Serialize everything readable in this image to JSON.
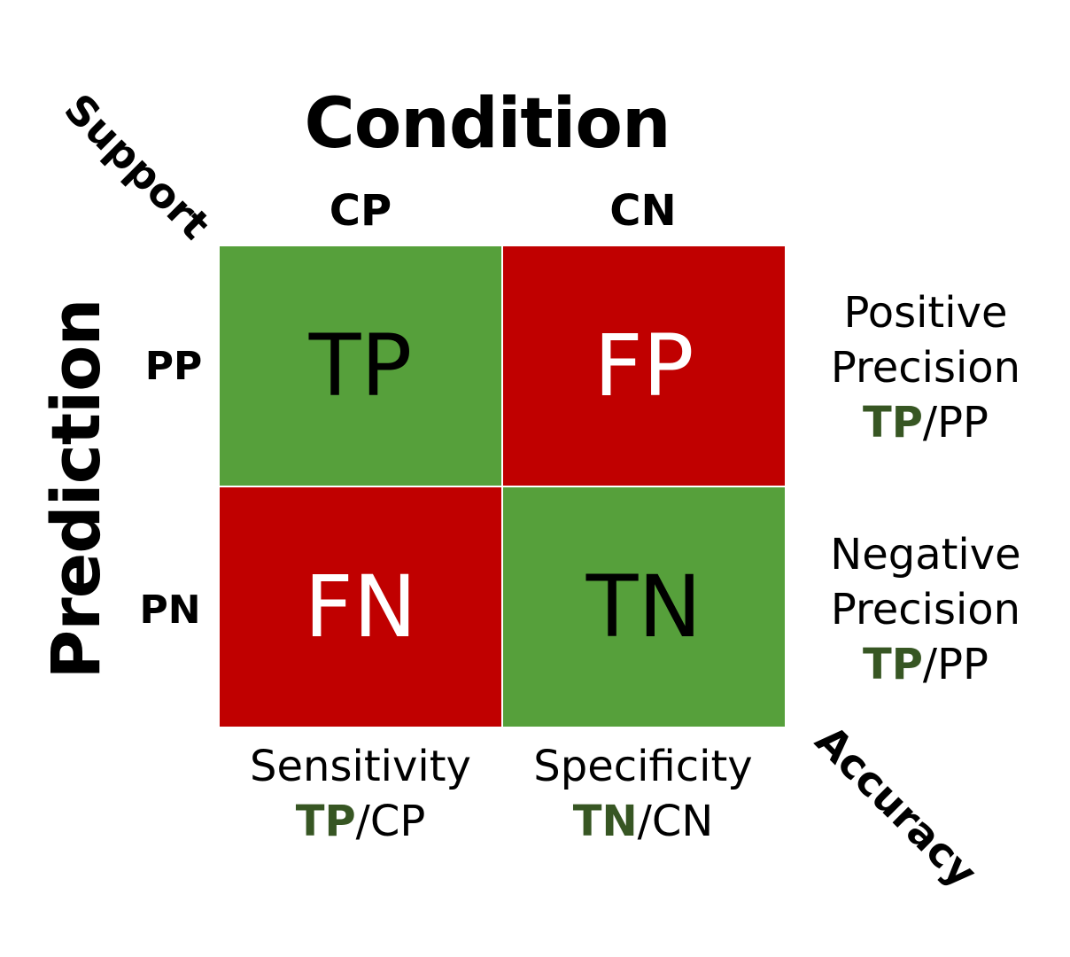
{
  "condition_title": "Condition",
  "prediction_title": "Prediction",
  "corner_top_left": "Support",
  "corner_bottom_right": "Accuracy",
  "columns": [
    "CP",
    "CN"
  ],
  "rows": [
    "PP",
    "PN"
  ],
  "cells": {
    "tp": {
      "label": "TP",
      "color": "#56A03B"
    },
    "fp": {
      "label": "FP",
      "color": "#C00000"
    },
    "fn": {
      "label": "FN",
      "color": "#C00000"
    },
    "tn": {
      "label": "TN",
      "color": "#56A03B"
    }
  },
  "metrics": {
    "positive_precision": {
      "line1": "Positive",
      "line2": "Precision",
      "numerator": "TP",
      "denominator": "/PP"
    },
    "negative_precision": {
      "line1": "Negative",
      "line2": "Precision",
      "numerator": "TP",
      "denominator": "/PP"
    },
    "sensitivity": {
      "line1": "Sensitivity",
      "numerator": "TP",
      "denominator": "/CP"
    },
    "specificity": {
      "line1": "Specificity",
      "numerator": "TN",
      "denominator": "/CN"
    }
  },
  "colors": {
    "correct": "#56A03B",
    "incorrect": "#C00000",
    "numerator_text": "#375623"
  }
}
